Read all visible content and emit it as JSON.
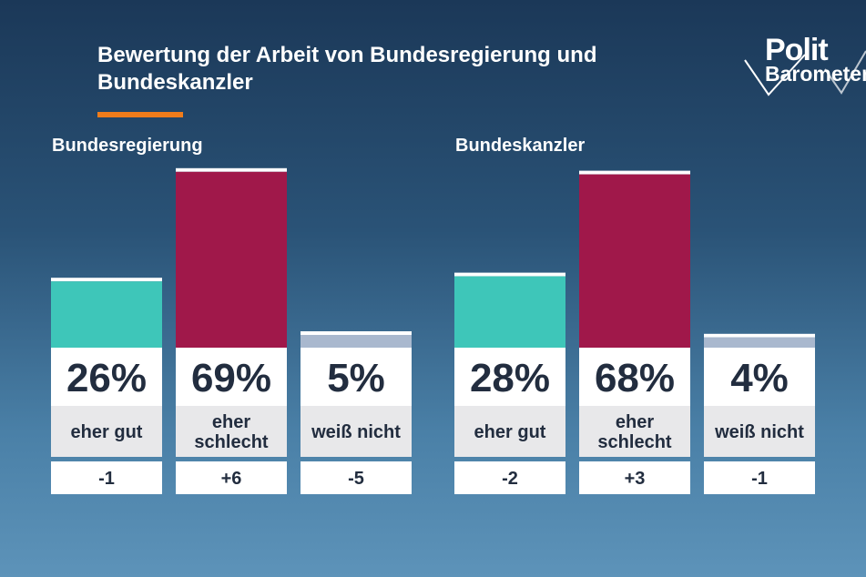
{
  "header": {
    "title": "Bewertung der Arbeit von Bundesregierung und Bundeskanzler",
    "accent_color": "#f07c1a"
  },
  "logo": {
    "line1": "Polit",
    "line2": "Barometer"
  },
  "colors": {
    "eher_gut": "#3ec6b9",
    "eher_schlecht": "#a0184a",
    "weiss_nicht": "#a9b8ce",
    "card": "#ffffff",
    "label_band": "#e8e8ea",
    "value_text": "#222d3f"
  },
  "chart_data": [
    {
      "type": "bar",
      "title": "Bundesregierung",
      "categories": [
        "eher gut",
        "eher schlecht",
        "weiß nicht"
      ],
      "values": [
        26,
        69,
        5
      ],
      "value_labels": [
        "26%",
        "69%",
        "5%"
      ],
      "changes": [
        "-1",
        "+6",
        "-5"
      ],
      "ylim": [
        0,
        100
      ]
    },
    {
      "type": "bar",
      "title": "Bundeskanzler",
      "categories": [
        "eher gut",
        "eher schlecht",
        "weiß nicht"
      ],
      "values": [
        28,
        68,
        4
      ],
      "value_labels": [
        "28%",
        "68%",
        "4%"
      ],
      "changes": [
        "-2",
        "+3",
        "-1"
      ],
      "ylim": [
        0,
        100
      ]
    }
  ]
}
